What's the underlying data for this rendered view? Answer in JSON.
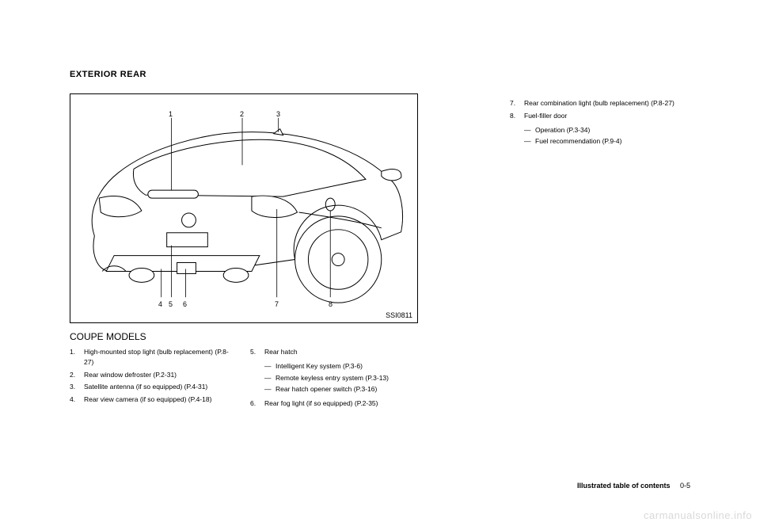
{
  "section_title": "EXTERIOR REAR",
  "figure": {
    "id": "SSI0811",
    "callouts": [
      "1",
      "2",
      "3",
      "4",
      "5",
      "6",
      "7",
      "8"
    ],
    "stroke": "#000000",
    "fill": "#ffffff",
    "line_width": 1
  },
  "subheading": "COUPE MODELS",
  "col_left": [
    {
      "n": "1.",
      "t": "High-mounted stop light (bulb replacement) (P.8-27)"
    },
    {
      "n": "2.",
      "t": "Rear window defroster (P.2-31)"
    },
    {
      "n": "3.",
      "t": "Satellite antenna (if so equipped) (P.4-31)"
    },
    {
      "n": "4.",
      "t": "Rear view camera (if so equipped) (P.4-18)"
    }
  ],
  "col_mid": [
    {
      "n": "5.",
      "t": "Rear hatch",
      "sub": [
        "Intelligent Key system (P.3-6)",
        "Remote keyless entry system (P.3-13)",
        "Rear hatch opener switch (P.3-16)"
      ]
    },
    {
      "n": "6.",
      "t": "Rear fog light (if so equipped) (P.2-35)"
    }
  ],
  "col_right": [
    {
      "n": "7.",
      "t": "Rear combination light (bulb replacement) (P.8-27)"
    },
    {
      "n": "8.",
      "t": "Fuel-filler door",
      "sub": [
        "Operation (P.3-34)",
        "Fuel recommendation (P.9-4)"
      ]
    }
  ],
  "footer": {
    "label": "Illustrated table of contents",
    "page": "0-5"
  },
  "watermark": "carmanualsonline.info"
}
